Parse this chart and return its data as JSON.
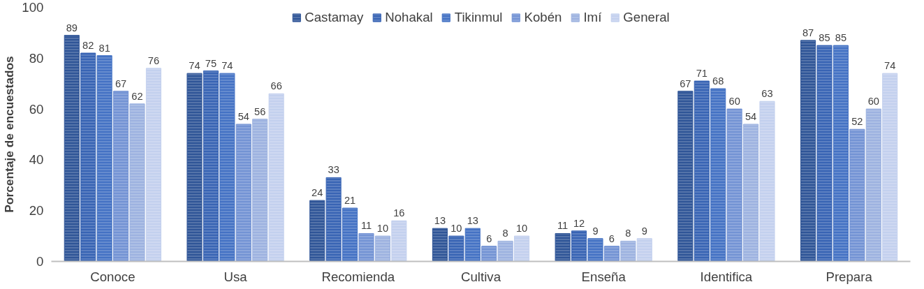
{
  "chart_data": {
    "type": "bar",
    "ylabel": "Porcentaje de encuestados",
    "categories": [
      "Conoce",
      "Usa",
      "Recomienda",
      "Cultiva",
      "Enseña",
      "Identifica",
      "Prepara"
    ],
    "series": [
      {
        "name": "Castamay",
        "color": "#2f5597",
        "values": [
          89,
          74,
          24,
          13,
          11,
          67,
          87
        ]
      },
      {
        "name": "Nohakal",
        "color": "#3864b4",
        "values": [
          82,
          75,
          33,
          10,
          12,
          71,
          85
        ]
      },
      {
        "name": "Tikinmul",
        "color": "#4472c4",
        "values": [
          81,
          74,
          21,
          13,
          9,
          68,
          85
        ]
      },
      {
        "name": "Kobén",
        "color": "#7393d4",
        "values": [
          67,
          54,
          11,
          6,
          6,
          60,
          52
        ]
      },
      {
        "name": "Imí",
        "color": "#9db2e0",
        "values": [
          62,
          56,
          10,
          8,
          8,
          54,
          60
        ]
      },
      {
        "name": "General",
        "color": "#c3d0ee",
        "values": [
          76,
          66,
          16,
          10,
          9,
          63,
          74
        ]
      }
    ],
    "ylim": [
      0,
      100
    ],
    "yticks": [
      0,
      20,
      40,
      60,
      80,
      100
    ],
    "grid": false,
    "legend": "top",
    "data_labels": true
  }
}
